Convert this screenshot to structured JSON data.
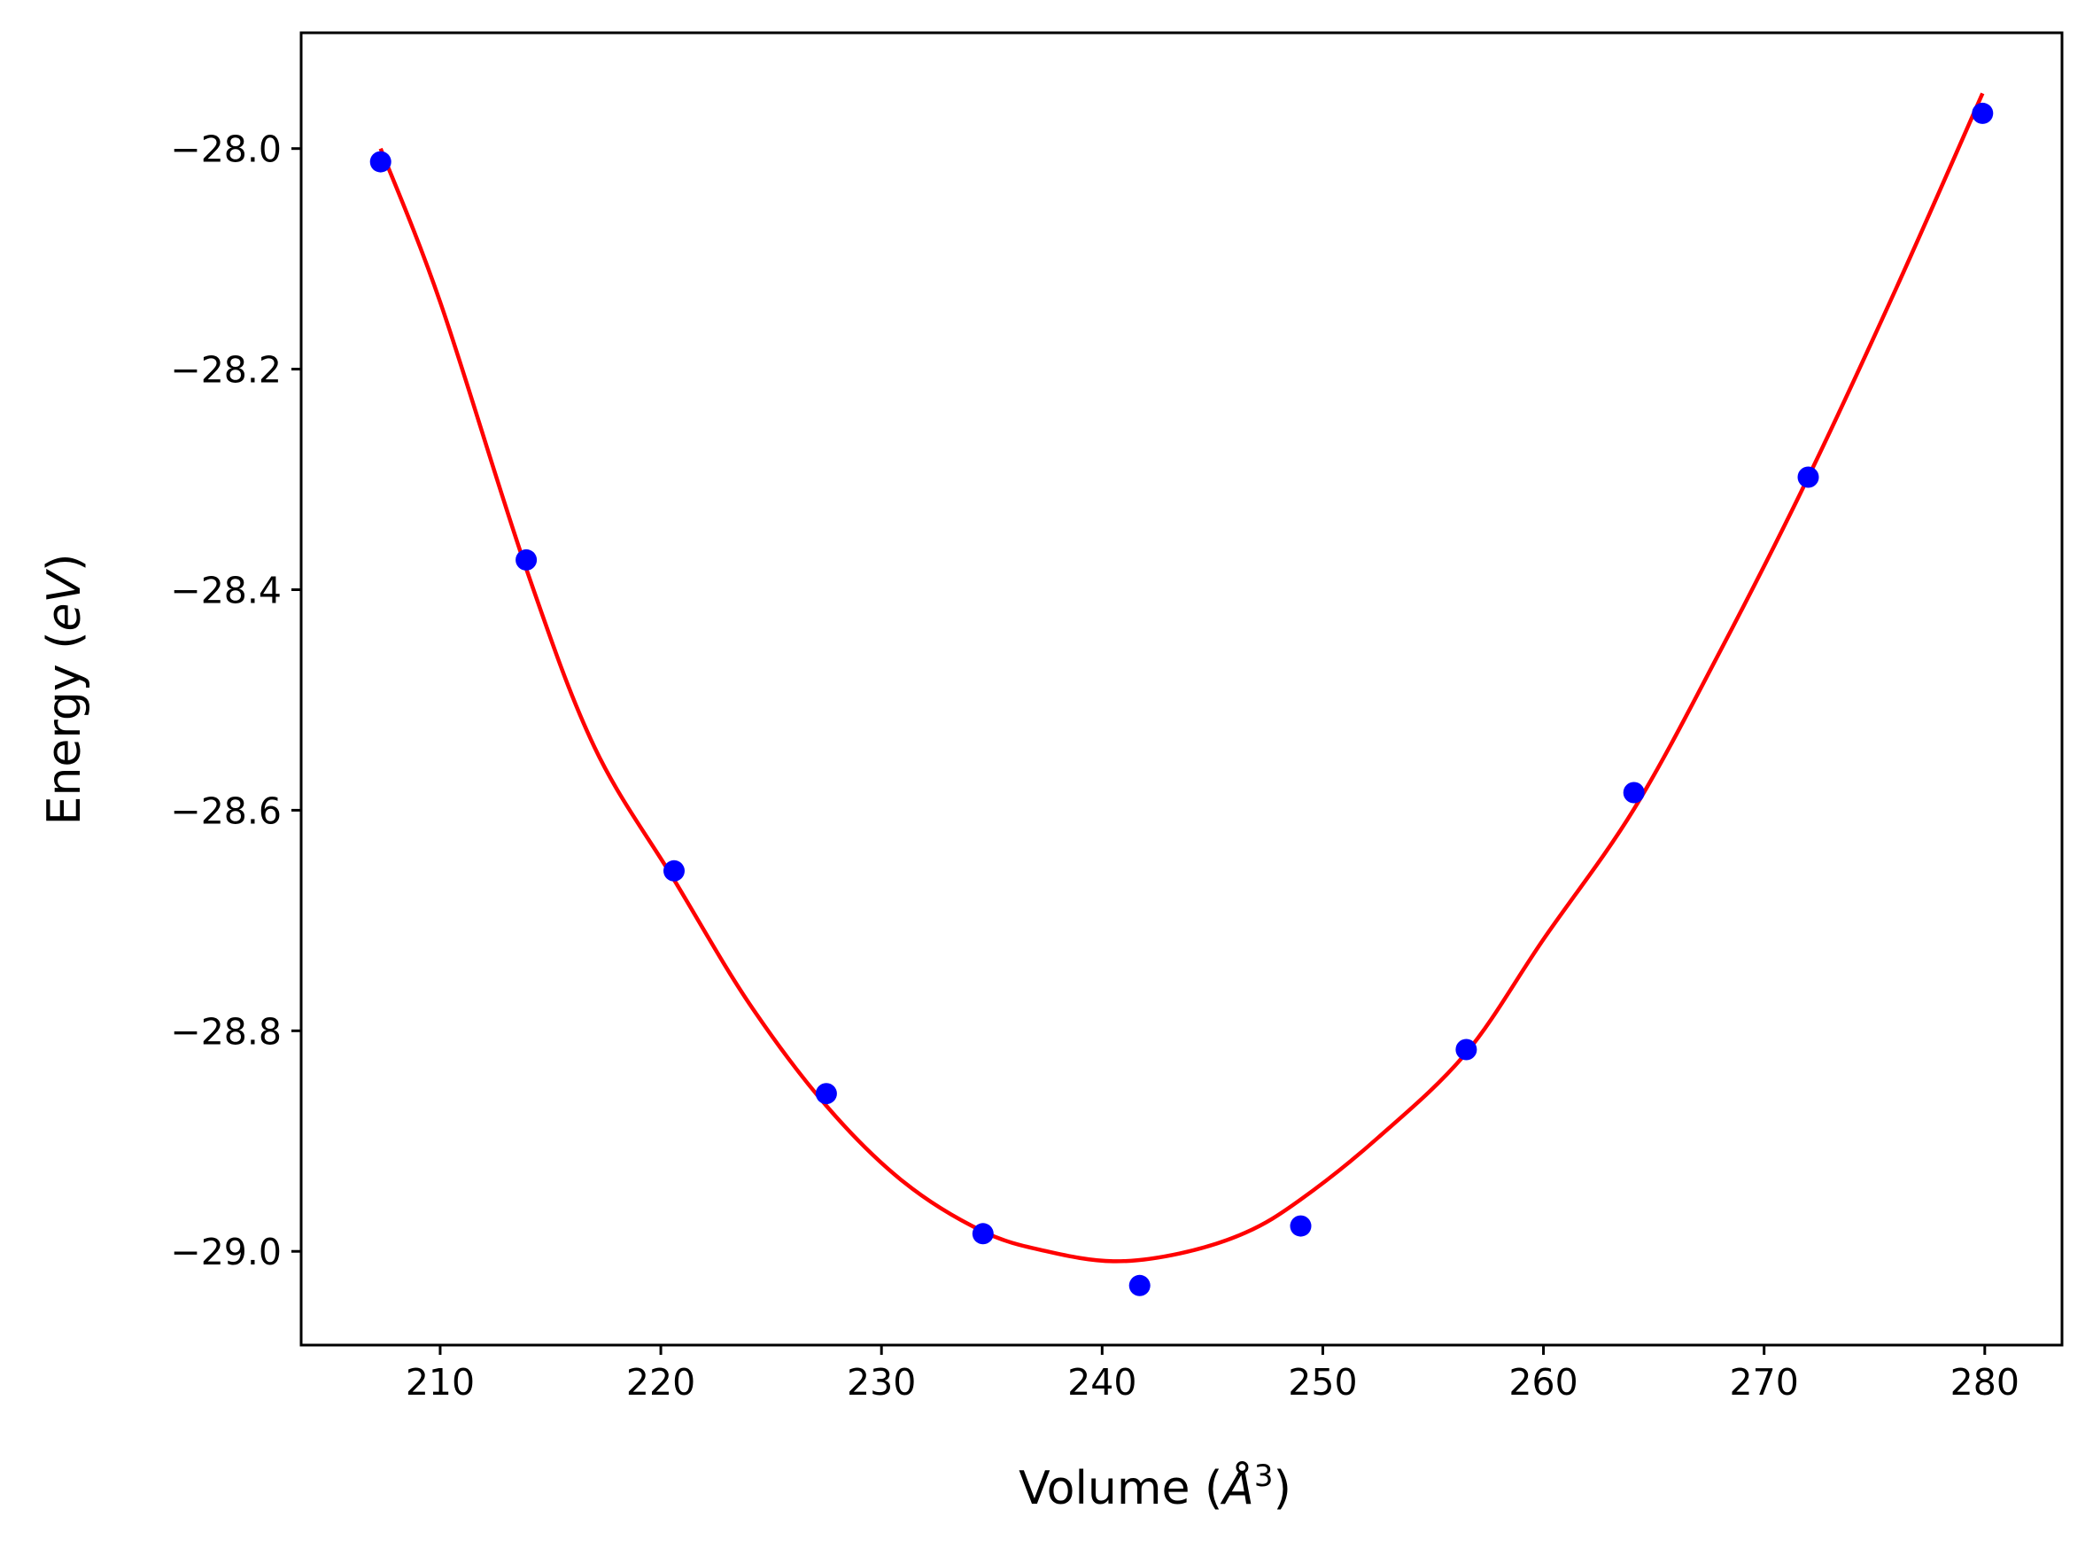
{
  "chart_data": {
    "type": "scatter",
    "xlabel": {
      "prefix": "Volume (",
      "symbol": "Å",
      "sup": "3",
      "suffix": ")"
    },
    "ylabel": {
      "prefix": "Energy (",
      "unit": "eV",
      "suffix": ")"
    },
    "xlim": [
      203.7,
      283.5
    ],
    "ylim": [
      -29.085,
      -27.895
    ],
    "xticks": [
      210,
      220,
      230,
      240,
      250,
      260,
      270,
      280
    ],
    "xtick_labels": [
      "210",
      "220",
      "230",
      "240",
      "250",
      "260",
      "270",
      "280"
    ],
    "yticks": [
      -28.0,
      -28.2,
      -28.4,
      -28.6,
      -28.8,
      -29.0
    ],
    "ytick_labels": [
      "−28.0",
      "−28.2",
      "−28.4",
      "−28.6",
      "−28.8",
      "−29.0"
    ],
    "grid": false,
    "legend": "none",
    "colors": {
      "points": "#0000ff",
      "fit": "#ff0000",
      "axes": "#000000"
    },
    "series": [
      {
        "kind": "points",
        "x": [
          207.3,
          213.9,
          220.6,
          227.5,
          234.6,
          241.7,
          249.0,
          256.5,
          264.1,
          272.0,
          279.9
        ],
        "y": [
          -28.012,
          -28.373,
          -28.655,
          -28.857,
          -28.984,
          -29.031,
          -28.977,
          -28.817,
          -28.584,
          -28.298,
          -27.968
        ]
      },
      {
        "kind": "fit",
        "x": [
          207.3,
          210.0,
          213.9,
          217.0,
          220.6,
          224.0,
          227.5,
          231.0,
          234.6,
          237.5,
          240.5,
          243.5,
          246.5,
          249.0,
          252.5,
          256.5,
          260.0,
          264.1,
          268.0,
          272.0,
          276.0,
          279.9
        ],
        "y": [
          -28.0,
          -28.139,
          -28.381,
          -28.543,
          -28.663,
          -28.775,
          -28.868,
          -28.937,
          -28.982,
          -29.0,
          -29.009,
          -29.002,
          -28.983,
          -28.953,
          -28.897,
          -28.82,
          -28.717,
          -28.599,
          -28.456,
          -28.298,
          -28.126,
          -27.95
        ]
      }
    ]
  }
}
